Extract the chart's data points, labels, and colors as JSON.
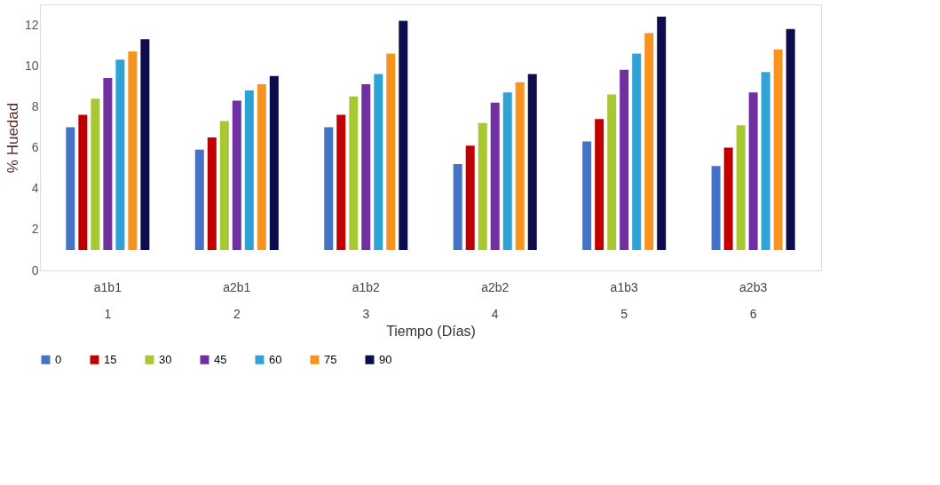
{
  "chart_data": {
    "type": "bar",
    "xlabel": "Tiempo (Días)",
    "ylabel": "% Huedad",
    "categories": [
      "a1b1\n1",
      "a2b1\n2",
      "a1b2\n3",
      "a2b2\n4",
      "a1b3\n5",
      "a2b3\n6"
    ],
    "ylim": [
      0,
      13
    ],
    "yticks": [
      0,
      2,
      4,
      6,
      8,
      10,
      12
    ],
    "grid": false,
    "legend": "bottom",
    "series": [
      {
        "name": "0",
        "color": "#4472c4",
        "base": [
          1,
          1,
          1,
          1,
          1,
          1
        ],
        "values": [
          6.0,
          4.9,
          6.0,
          4.2,
          5.3,
          4.1
        ]
      },
      {
        "name": "15",
        "color": "#c00000",
        "base": [
          1,
          1,
          1,
          1,
          1,
          1
        ],
        "values": [
          6.6,
          5.5,
          6.6,
          5.1,
          6.4,
          5.0
        ]
      },
      {
        "name": "30",
        "color": "#a8c832",
        "base": [
          1,
          1,
          1,
          1,
          1,
          1
        ],
        "values": [
          7.4,
          6.3,
          7.5,
          6.2,
          7.6,
          6.1
        ]
      },
      {
        "name": "45",
        "color": "#7030a0",
        "base": [
          1,
          1,
          1,
          1,
          1,
          1
        ],
        "values": [
          8.4,
          7.3,
          8.1,
          7.2,
          8.8,
          7.7
        ]
      },
      {
        "name": "60",
        "color": "#2fa3d6",
        "base": [
          1,
          1,
          1,
          1,
          1,
          1
        ],
        "values": [
          9.3,
          7.8,
          8.6,
          7.7,
          9.6,
          8.7
        ]
      },
      {
        "name": "75",
        "color": "#f79420",
        "base": [
          1,
          1,
          1,
          1,
          1,
          1
        ],
        "values": [
          9.7,
          8.1,
          9.6,
          8.2,
          10.6,
          9.8
        ]
      },
      {
        "name": "90",
        "color": "#0d0d4d",
        "base": [
          1,
          1,
          1,
          1,
          1,
          1
        ],
        "values": [
          10.3,
          8.5,
          11.2,
          8.6,
          11.4,
          10.8
        ]
      }
    ]
  }
}
